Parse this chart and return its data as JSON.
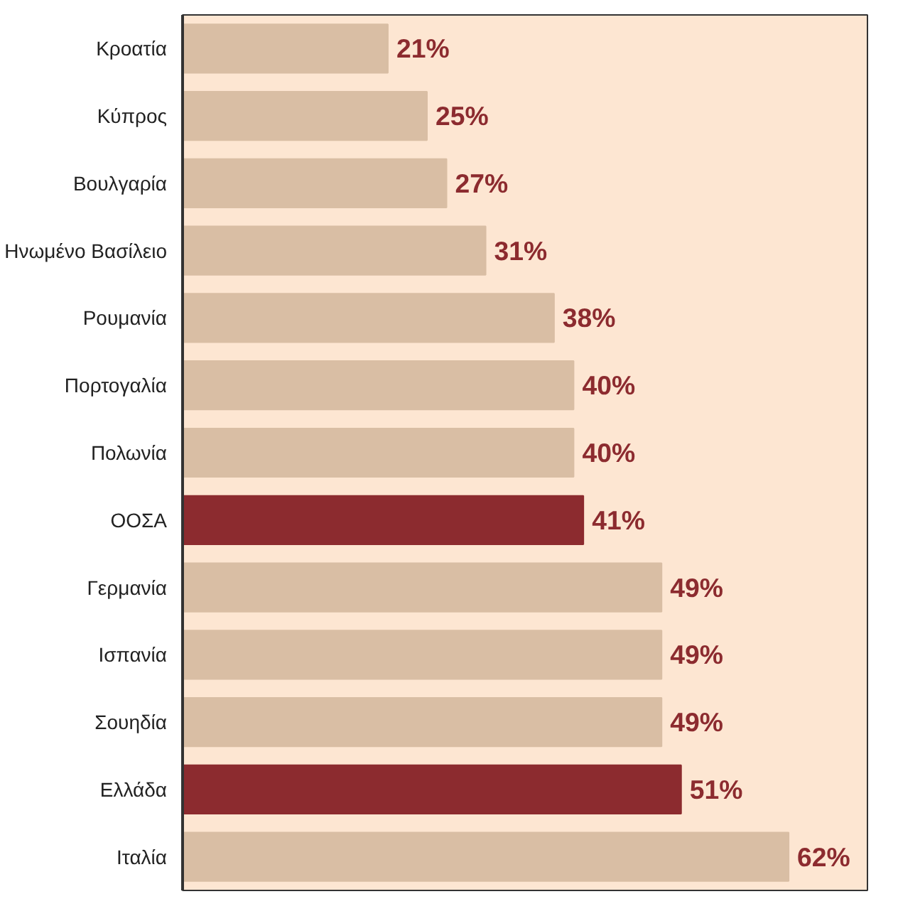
{
  "chart_data": {
    "type": "bar",
    "orientation": "horizontal",
    "categories": [
      "Κροατία",
      "Κύπρος",
      "Βουλγαρία",
      "Ηνωμένο Βασίλειο",
      "Ρουμανία",
      "Πορτογαλία",
      "Πολωνία",
      "ΟΟΣΑ",
      "Γερμανία",
      "Ισπανία",
      "Σουηδία",
      "Ελλάδα",
      "Ιταλία"
    ],
    "values": [
      21,
      25,
      27,
      31,
      38,
      40,
      40,
      41,
      49,
      49,
      49,
      51,
      62
    ],
    "colors": [
      "#d9bea4",
      "#d9bea4",
      "#d9bea4",
      "#d9bea4",
      "#d9bea4",
      "#d9bea4",
      "#d9bea4",
      "#8c2b2f",
      "#d9bea4",
      "#d9bea4",
      "#d9bea4",
      "#8c2b2f",
      "#d9bea4"
    ],
    "value_labels": [
      "21%",
      "25%",
      "27%",
      "31%",
      "38%",
      "40%",
      "40%",
      "41%",
      "49%",
      "49%",
      "49%",
      "51%",
      "62%"
    ]
  }
}
